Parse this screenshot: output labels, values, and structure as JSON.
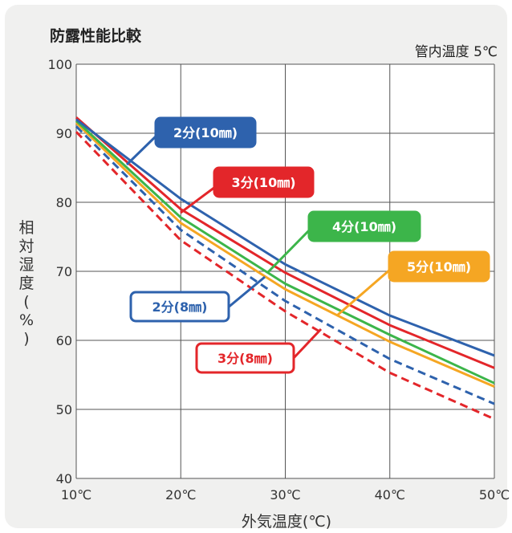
{
  "chart_data": {
    "type": "line",
    "title": "防露性能比較",
    "subtitle": "管内温度 5℃",
    "xlabel": "外気温度(℃)",
    "ylabel": "相対湿度(%)",
    "x": [
      10,
      20,
      30,
      40,
      50
    ],
    "x_tick_labels": [
      "10℃",
      "20℃",
      "30℃",
      "40℃",
      "50℃"
    ],
    "y_ticks": [
      40,
      50,
      60,
      70,
      80,
      90,
      100
    ],
    "xlim": [
      10,
      50
    ],
    "ylim": [
      40,
      100
    ],
    "grid": true,
    "series": [
      {
        "name": "2分(10㎜)",
        "color": "#2e62ad",
        "dash": false,
        "label_style": "filled",
        "values": [
          92.0,
          80.5,
          71.0,
          63.6,
          57.8
        ]
      },
      {
        "name": "3分(10㎜)",
        "color": "#e3262a",
        "dash": false,
        "label_style": "filled",
        "values": [
          92.3,
          79.0,
          69.8,
          62.2,
          56.0
        ]
      },
      {
        "name": "4分(10㎜)",
        "color": "#3cb54a",
        "dash": false,
        "label_style": "filled",
        "values": [
          91.8,
          77.8,
          68.2,
          60.8,
          53.8
        ]
      },
      {
        "name": "5分(10㎜)",
        "color": "#f5a623",
        "dash": false,
        "label_style": "filled",
        "values": [
          91.5,
          77.0,
          67.4,
          59.8,
          53.3
        ]
      },
      {
        "name": "2分(8㎜)",
        "color": "#2e62ad",
        "dash": true,
        "label_style": "outline",
        "values": [
          91.0,
          76.0,
          65.7,
          57.3,
          50.8
        ]
      },
      {
        "name": "3分(8㎜)",
        "color": "#e3262a",
        "dash": true,
        "label_style": "outline",
        "values": [
          90.2,
          74.5,
          64.2,
          55.3,
          48.6
        ]
      }
    ]
  }
}
